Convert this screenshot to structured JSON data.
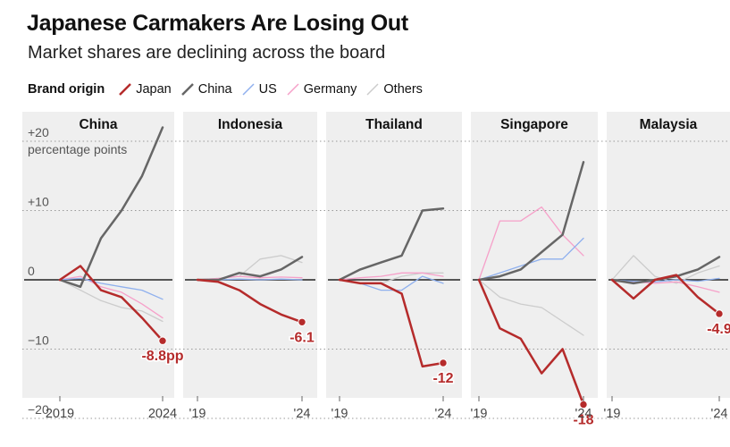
{
  "header": {
    "title": "Japanese Carmakers Are Losing Out",
    "subtitle": "Market shares are declining across the board"
  },
  "legend": {
    "title": "Brand origin",
    "items": [
      {
        "label": "Japan",
        "color": "#b52b2b"
      },
      {
        "label": "China",
        "color": "#666666"
      },
      {
        "label": "US",
        "color": "#8fb0ee"
      },
      {
        "label": "Germany",
        "color": "#f6a0c9"
      },
      {
        "label": "Others",
        "color": "#cccccc"
      }
    ]
  },
  "chart_data": {
    "type": "line",
    "title": "Japanese Carmakers Are Losing Out",
    "ylabel": "percentage points",
    "ylim": [
      -20,
      20
    ],
    "yticks": [
      {
        "value": 20,
        "label": "+20"
      },
      {
        "value": 10,
        "label": "+10"
      },
      {
        "value": 0,
        "label": "0"
      },
      {
        "value": -10,
        "label": "−10"
      },
      {
        "value": -20,
        "label": "−20"
      }
    ],
    "y_unit_label": "percentage points",
    "x": [
      2019,
      2020,
      2021,
      2022,
      2023,
      2024
    ],
    "panels": [
      {
        "name": "China",
        "x_tick_labels": [
          "2019",
          "2024"
        ],
        "end_label": "-8.8pp",
        "series": [
          {
            "name": "Others",
            "values": [
              0,
              -1.5,
              -3,
              -4,
              -4.5,
              -6
            ]
          },
          {
            "name": "Germany",
            "values": [
              0,
              0.5,
              -1,
              -1.8,
              -3.5,
              -5.5
            ]
          },
          {
            "name": "US",
            "values": [
              0,
              0.2,
              -0.5,
              -1,
              -1.5,
              -2.8
            ]
          },
          {
            "name": "China",
            "values": [
              0,
              -1,
              6,
              10,
              15,
              22
            ]
          },
          {
            "name": "Japan",
            "values": [
              0,
              2,
              -1.5,
              -2.5,
              -5.5,
              -8.8
            ]
          }
        ]
      },
      {
        "name": "Indonesia",
        "x_tick_labels": [
          "'19",
          "'24"
        ],
        "end_label": "-6.1",
        "series": [
          {
            "name": "Others",
            "values": [
              0,
              0.2,
              0.5,
              3,
              3.5,
              2.5
            ]
          },
          {
            "name": "Germany",
            "values": [
              0,
              0.2,
              0.5,
              0.3,
              0.4,
              0.3
            ]
          },
          {
            "name": "US",
            "values": [
              0,
              0,
              0.1,
              0,
              0.1,
              0
            ]
          },
          {
            "name": "China",
            "values": [
              0,
              0,
              1,
              0.5,
              1.5,
              3.3
            ]
          },
          {
            "name": "Japan",
            "values": [
              0,
              -0.3,
              -1.5,
              -3.5,
              -5,
              -6.1
            ]
          }
        ]
      },
      {
        "name": "Thailand",
        "x_tick_labels": [
          "'19",
          "'24"
        ],
        "end_label": "-12",
        "series": [
          {
            "name": "Others",
            "values": [
              0,
              -0.5,
              -0.5,
              0.5,
              1,
              1
            ]
          },
          {
            "name": "Germany",
            "values": [
              0,
              0.3,
              0.5,
              1,
              1,
              0.5
            ]
          },
          {
            "name": "US",
            "values": [
              0,
              -0.5,
              -1.5,
              -1.5,
              0.5,
              -0.5
            ]
          },
          {
            "name": "China",
            "values": [
              0,
              1.5,
              2.5,
              3.5,
              10,
              10.3
            ]
          },
          {
            "name": "Japan",
            "values": [
              0,
              -0.5,
              -0.5,
              -2,
              -12.5,
              -12
            ]
          }
        ]
      },
      {
        "name": "Singapore",
        "x_tick_labels": [
          "'19",
          "'24"
        ],
        "end_label": "-18",
        "series": [
          {
            "name": "Others",
            "values": [
              0,
              -2.5,
              -3.5,
              -4,
              -6,
              -8
            ]
          },
          {
            "name": "Germany",
            "values": [
              0,
              8.5,
              8.5,
              10.5,
              6.5,
              3.5
            ]
          },
          {
            "name": "US",
            "values": [
              0,
              1,
              2,
              3,
              3,
              6
            ]
          },
          {
            "name": "China",
            "values": [
              0,
              0.5,
              1.5,
              4,
              6.5,
              17
            ]
          },
          {
            "name": "Japan",
            "values": [
              0,
              -7,
              -8.5,
              -13.5,
              -10,
              -18
            ]
          }
        ]
      },
      {
        "name": "Malaysia",
        "x_tick_labels": [
          "'19",
          "'24"
        ],
        "end_label": "-4.9",
        "series": [
          {
            "name": "Others",
            "values": [
              0,
              3.5,
              0.5,
              -0.5,
              1,
              2
            ]
          },
          {
            "name": "Germany",
            "values": [
              0,
              -0.3,
              -0.5,
              -0.3,
              -1,
              -1.8
            ]
          },
          {
            "name": "US",
            "values": [
              0,
              -0.2,
              -0.3,
              0,
              -0.2,
              0.2
            ]
          },
          {
            "name": "China",
            "values": [
              0,
              -0.5,
              0,
              0.5,
              1.5,
              3.3
            ]
          },
          {
            "name": "Japan",
            "values": [
              0,
              -2.7,
              0,
              0.7,
              -2.5,
              -4.9
            ]
          }
        ]
      }
    ]
  }
}
